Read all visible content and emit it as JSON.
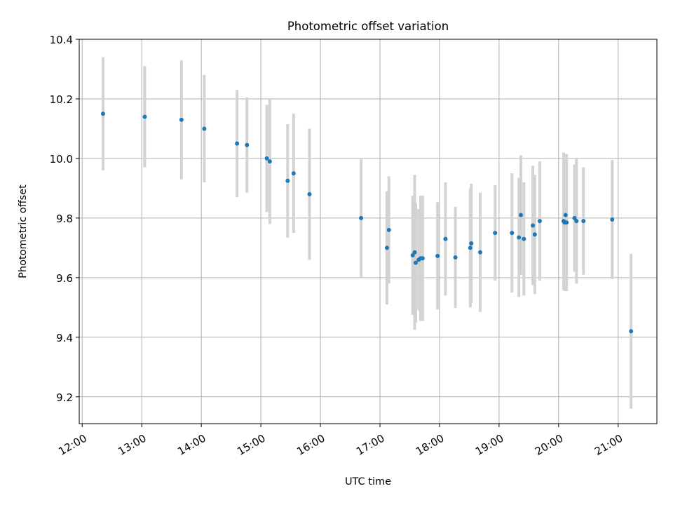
{
  "chart_data": {
    "type": "scatter",
    "title": "Photometric offset variation",
    "xlabel": "UTC time",
    "ylabel": "Photometric offset",
    "xlim": [
      "11:57",
      "21:39"
    ],
    "ylim": [
      9.11,
      10.4
    ],
    "x_ticks": [
      "12:00",
      "13:00",
      "14:00",
      "15:00",
      "16:00",
      "17:00",
      "18:00",
      "19:00",
      "20:00",
      "21:00"
    ],
    "y_ticks": [
      "9.2",
      "9.4",
      "9.6",
      "9.8",
      "10.0",
      "10.2",
      "10.4"
    ],
    "grid": true,
    "point_color": "#1f77b4",
    "errorbar_color": "#d3d3d3",
    "series": [
      {
        "x": [
          "12:21",
          "13:03",
          "13:40",
          "14:03",
          "14:36",
          "14:46",
          "15:06",
          "15:09",
          "15:27",
          "15:33",
          "15:49",
          "16:41",
          "17:07",
          "17:09",
          "17:33",
          "17:35",
          "17:36",
          "17:39",
          "17:41",
          "17:43",
          "17:58",
          "18:06",
          "18:16",
          "18:31",
          "18:32",
          "18:41",
          "18:56",
          "19:13",
          "19:20",
          "19:22",
          "19:25",
          "19:34",
          "19:36",
          "19:41",
          "20:05",
          "20:06",
          "20:07",
          "20:08",
          "20:16",
          "20:18",
          "20:25",
          "20:54",
          "21:13"
        ],
        "y": [
          10.15,
          10.14,
          10.13,
          10.1,
          10.05,
          10.045,
          10.0,
          9.99,
          9.925,
          9.95,
          9.88,
          9.8,
          9.7,
          9.76,
          9.675,
          9.685,
          9.65,
          9.66,
          9.665,
          9.665,
          9.673,
          9.73,
          9.668,
          9.7,
          9.715,
          9.685,
          9.75,
          9.75,
          9.735,
          9.81,
          9.73,
          9.775,
          9.745,
          9.79,
          9.79,
          9.785,
          9.81,
          9.785,
          9.8,
          9.79,
          9.79,
          9.795,
          9.42
        ],
        "yerr": [
          0.19,
          0.17,
          0.2,
          0.18,
          0.18,
          0.16,
          0.18,
          0.21,
          0.19,
          0.2,
          0.22,
          0.2,
          0.19,
          0.18,
          0.2,
          0.26,
          0.2,
          0.17,
          0.21,
          0.21,
          0.18,
          0.19,
          0.17,
          0.2,
          0.2,
          0.2,
          0.16,
          0.2,
          0.2,
          0.2,
          0.19,
          0.2,
          0.2,
          0.2,
          0.23,
          0.23,
          0.2,
          0.23,
          0.18,
          0.21,
          0.18,
          0.2,
          0.26
        ]
      }
    ]
  }
}
